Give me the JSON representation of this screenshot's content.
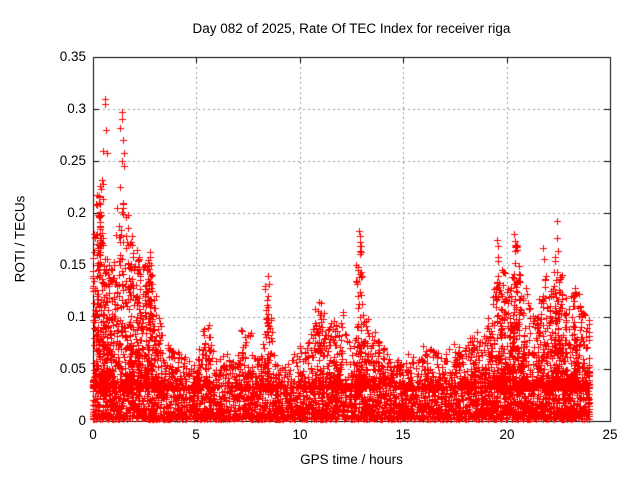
{
  "figure": {
    "background": "#ffffff",
    "axis_color": "#000000",
    "grid_color": "#999999"
  },
  "chart_data": {
    "type": "scatter",
    "title": "Day 082 of 2025, Rate Of TEC Index for receiver riga",
    "xlabel": "GPS time / hours",
    "ylabel": "ROTI / TECUs",
    "xlim": [
      0,
      25
    ],
    "ylim": [
      0,
      0.35
    ],
    "xticks": [
      0,
      5,
      10,
      15,
      20,
      25
    ],
    "xtick_labels": [
      "0",
      "5",
      "10",
      "15",
      "20",
      "25"
    ],
    "yticks": [
      0,
      0.05,
      0.1,
      0.15,
      0.2,
      0.25,
      0.3,
      0.35
    ],
    "ytick_labels": [
      "0",
      "0.05",
      "0.1",
      "0.15",
      "0.2",
      "0.25",
      "0.3",
      "0.35"
    ],
    "grid": true,
    "legend": "none",
    "marker": {
      "shape": "plus",
      "color": "#ff0000",
      "size": 7
    },
    "series_name": "ROTI",
    "time_coverage_hours": [
      0,
      24
    ],
    "baseline_band": {
      "min": 0.002,
      "max": 0.035
    },
    "envelope_step_hours": 0.2,
    "envelope_max": [
      0.185,
      0.22,
      0.23,
      0.16,
      0.15,
      0.155,
      0.19,
      0.21,
      0.2,
      0.19,
      0.165,
      0.165,
      0.15,
      0.155,
      0.165,
      0.12,
      0.1,
      0.085,
      0.075,
      0.07,
      0.065,
      0.068,
      0.062,
      0.058,
      0.055,
      0.06,
      0.07,
      0.09,
      0.092,
      0.07,
      0.058,
      0.06,
      0.065,
      0.06,
      0.058,
      0.065,
      0.088,
      0.082,
      0.085,
      0.062,
      0.06,
      0.075,
      0.13,
      0.1,
      0.065,
      0.055,
      0.052,
      0.056,
      0.06,
      0.065,
      0.072,
      0.068,
      0.078,
      0.09,
      0.108,
      0.115,
      0.105,
      0.092,
      0.096,
      0.095,
      0.105,
      0.085,
      0.078,
      0.082,
      0.15,
      0.17,
      0.1,
      0.082,
      0.086,
      0.078,
      0.072,
      0.066,
      0.06,
      0.057,
      0.06,
      0.056,
      0.066,
      0.062,
      0.052,
      0.06,
      0.073,
      0.065,
      0.07,
      0.066,
      0.062,
      0.066,
      0.07,
      0.076,
      0.072,
      0.066,
      0.072,
      0.08,
      0.082,
      0.086,
      0.082,
      0.09,
      0.1,
      0.13,
      0.16,
      0.15,
      0.13,
      0.14,
      0.17,
      0.15,
      0.12,
      0.13,
      0.11,
      0.1,
      0.12,
      0.14,
      0.12,
      0.13,
      0.16,
      0.145,
      0.12,
      0.11,
      0.12,
      0.125,
      0.112,
      0.105,
      0.1
    ],
    "outliers": [
      [
        0.45,
        0.232
      ],
      [
        0.5,
        0.26
      ],
      [
        0.58,
        0.31
      ],
      [
        0.6,
        0.305
      ],
      [
        0.62,
        0.28
      ],
      [
        0.68,
        0.258
      ],
      [
        1.15,
        0.205
      ],
      [
        1.3,
        0.282
      ],
      [
        1.32,
        0.225
      ],
      [
        1.38,
        0.25
      ],
      [
        1.4,
        0.297
      ],
      [
        1.42,
        0.29
      ],
      [
        1.45,
        0.27
      ],
      [
        1.48,
        0.258
      ],
      [
        1.5,
        0.245
      ],
      [
        8.47,
        0.139
      ],
      [
        8.5,
        0.132
      ],
      [
        12.88,
        0.183
      ],
      [
        12.9,
        0.178
      ],
      [
        12.92,
        0.172
      ],
      [
        12.9,
        0.163
      ],
      [
        19.55,
        0.174
      ],
      [
        19.6,
        0.168
      ],
      [
        20.35,
        0.18
      ],
      [
        20.4,
        0.173
      ],
      [
        21.78,
        0.166
      ],
      [
        21.8,
        0.156
      ],
      [
        22.42,
        0.192
      ],
      [
        22.45,
        0.176
      ],
      [
        22.48,
        0.163
      ],
      [
        23.3,
        0.128
      ]
    ]
  }
}
